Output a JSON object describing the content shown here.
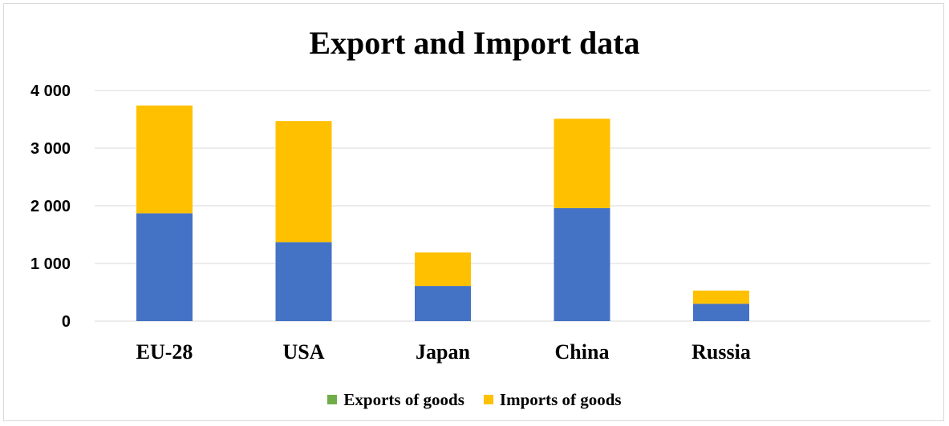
{
  "chart_data": {
    "type": "bar",
    "stacked": true,
    "title": "Export and Import  data",
    "categories": [
      "EU-28",
      "USA",
      "Japan",
      "China",
      "Russia"
    ],
    "series": [
      {
        "name": "Exports of goods",
        "color": "#4472c4",
        "legend_color": "#70ad47",
        "values": [
          1870,
          1370,
          610,
          1960,
          300
        ]
      },
      {
        "name": "Imports of goods",
        "color": "#ffc000",
        "legend_color": "#ffc000",
        "values": [
          1870,
          2100,
          580,
          1550,
          230
        ]
      }
    ],
    "yticks": [
      "0",
      "1 000",
      "2 000",
      "3 000",
      "4 000"
    ],
    "ylim": [
      0,
      4000
    ],
    "grid": true,
    "legend_position": "bottom"
  }
}
